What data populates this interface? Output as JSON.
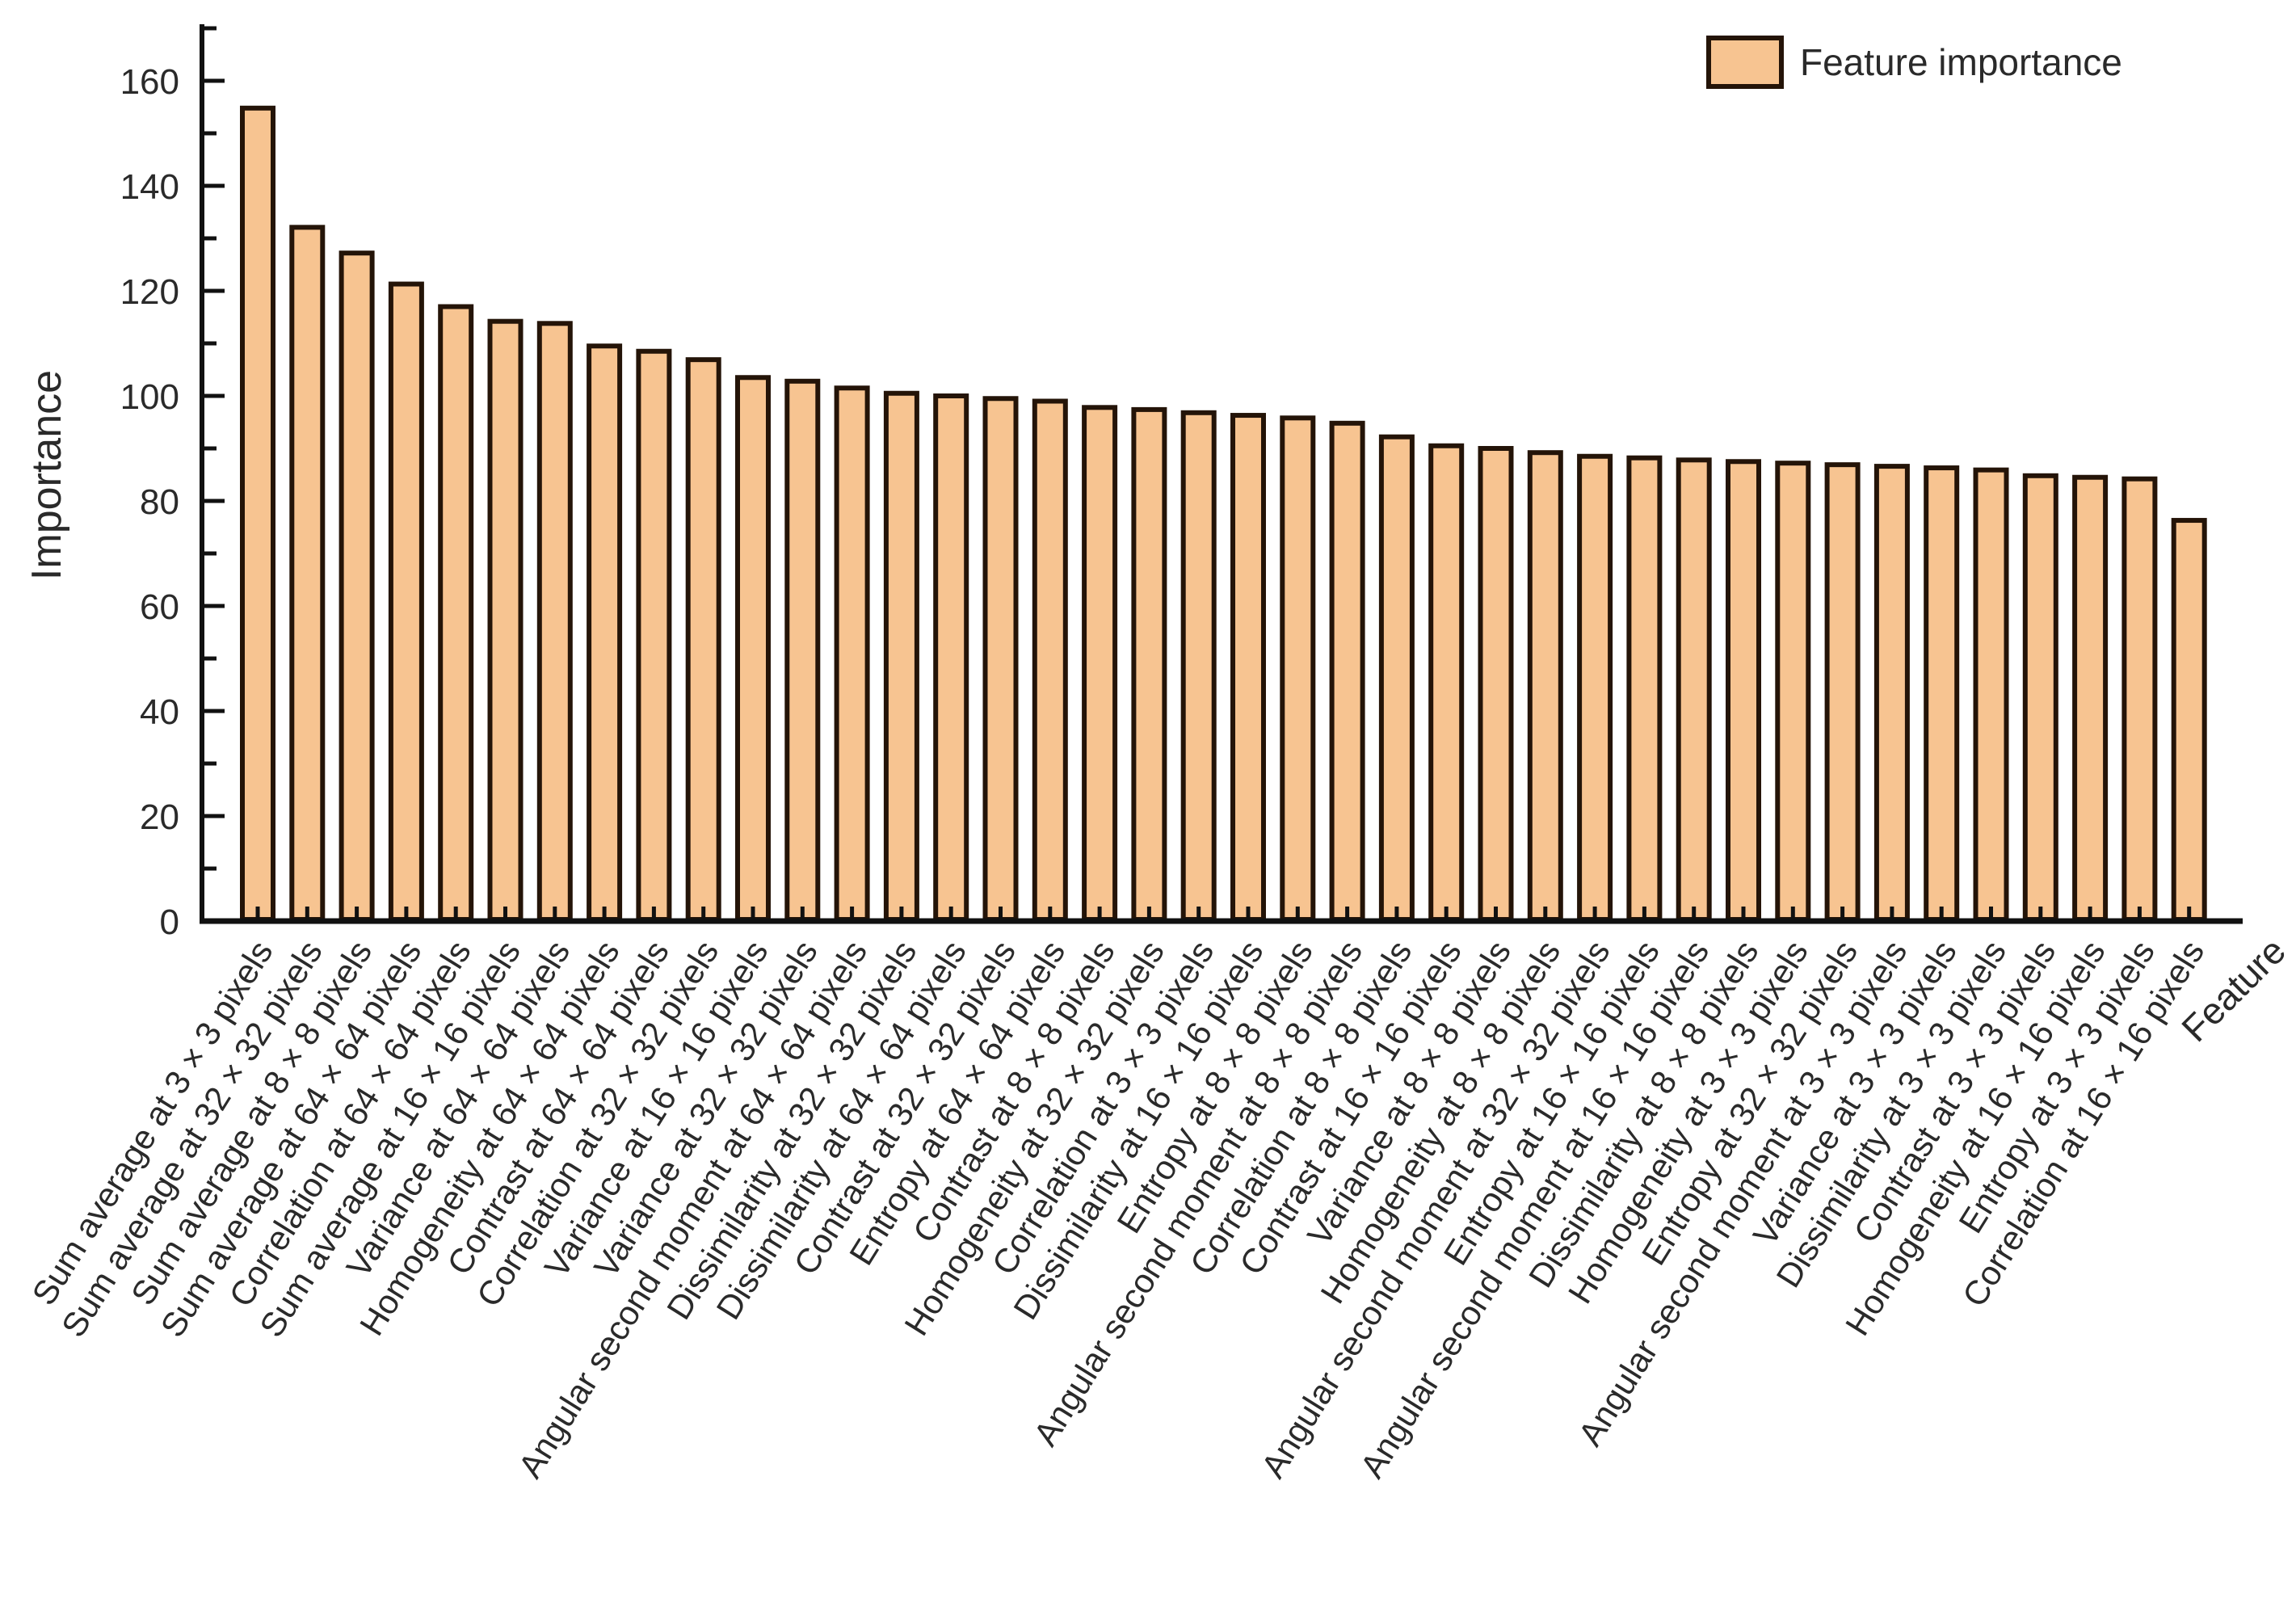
{
  "legend": {
    "label": "Feature importance"
  },
  "axes": {
    "y_title": "Importance",
    "x_title": "Feature"
  },
  "colors": {
    "bar_fill": "#F7C491",
    "bar_stroke": "#241408",
    "axis": "#111111",
    "text": "#2a2a2a",
    "background": "#ffffff"
  },
  "chart_data": {
    "type": "bar",
    "title": "",
    "xlabel": "Feature",
    "ylabel": "Importance",
    "legend_entries": [
      "Feature importance"
    ],
    "legend_position": "top-right",
    "grid": false,
    "ylim": [
      0,
      170
    ],
    "yticks_major": [
      0,
      20,
      40,
      60,
      80,
      100,
      120,
      140,
      160
    ],
    "yticks_minor": [
      10,
      30,
      50,
      70,
      90,
      110,
      130,
      150,
      170
    ],
    "categories": [
      "Sum average at 3 × 3 pixels",
      "Sum average at 32 × 32 pixels",
      "Sum average at 8 × 8 pixels",
      "Sum average at 64 × 64 pixels",
      "Correlation at 64 × 64 pixels",
      "Sum average at 16 × 16 pixels",
      "Variance at 64 × 64 pixels",
      "Homogeneity at 64 × 64 pixels",
      "Contrast at 64 × 64 pixels",
      "Correlation at 32 × 32 pixels",
      "Variance at 16 × 16 pixels",
      "Variance at 32 × 32 pixels",
      "Angular second moment at 64 × 64 pixels",
      "Dissimilarity at 32 × 32 pixels",
      "Dissimilarity at 64 × 64 pixels",
      "Contrast at 32 × 32 pixels",
      "Entropy at 64 × 64 pixels",
      "Contrast at 8 × 8 pixels",
      "Homogeneity at 32 × 32 pixels",
      "Correlation at 3 × 3 pixels",
      "Dissimilarity at 16 × 16 pixels",
      "Entropy at 8 × 8 pixels",
      "Angular second moment at 8 × 8 pixels",
      "Correlation at 8 × 8 pixels",
      "Contrast at 16 × 16 pixels",
      "Variance at 8 × 8 pixels",
      "Homogeneity at 8 × 8 pixels",
      "Angular second moment at 32 × 32 pixels",
      "Entropy at 16 × 16 pixels",
      "Angular second moment at 16 × 16 pixels",
      "Dissimilarity at 8 × 8 pixels",
      "Homogeneity at 3 × 3 pixels",
      "Entropy at 32 × 32 pixels",
      "Angular second moment at 3 × 3 pixels",
      "Variance at 3 × 3 pixels",
      "Dissimilarity at 3 × 3 pixels",
      "Contrast at 3 × 3 pixels",
      "Homogeneity at 16 × 16 pixels",
      "Entropy at 3 × 3 pixels",
      "Correlation at 16 × 16 pixels"
    ],
    "series": [
      {
        "name": "Feature importance",
        "values": [
          154.8,
          132.1,
          127.2,
          121.3,
          117.0,
          114.2,
          113.8,
          109.5,
          108.5,
          106.9,
          103.5,
          102.8,
          101.5,
          100.5,
          100.0,
          99.5,
          99.0,
          97.8,
          97.4,
          96.8,
          96.3,
          95.8,
          94.8,
          92.2,
          90.5,
          90.0,
          89.2,
          88.5,
          88.2,
          87.8,
          87.5,
          87.2,
          86.9,
          86.6,
          86.3,
          85.9,
          84.8,
          84.5,
          84.2,
          76.3
        ]
      }
    ]
  }
}
